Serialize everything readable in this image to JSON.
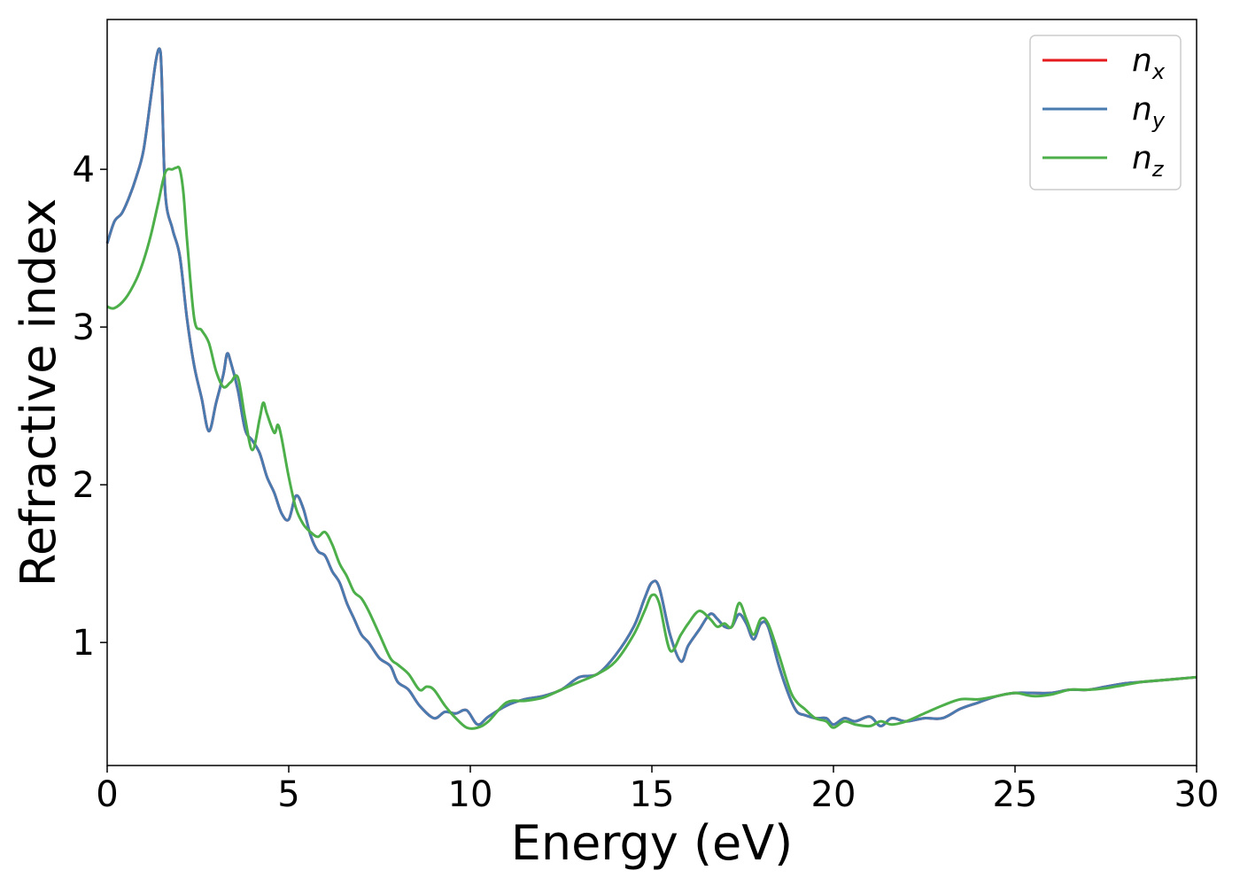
{
  "chart_data": {
    "type": "line",
    "title": "",
    "xlabel": "Energy (eV)",
    "ylabel": "Refractive index",
    "xlim": [
      0,
      30
    ],
    "ylim": [
      0.22,
      4.95
    ],
    "xticks": [
      0,
      5,
      10,
      15,
      20,
      25,
      30
    ],
    "yticks": [
      1,
      2,
      3,
      4
    ],
    "grid": false,
    "legend_position": "top-right",
    "series": [
      {
        "name": "n_x",
        "label_base": "n",
        "label_sub": "x",
        "color": "#e41a1c",
        "x": [
          0,
          0.2,
          0.4,
          0.6,
          0.8,
          1.0,
          1.2,
          1.35,
          1.45,
          1.5,
          1.6,
          1.8,
          2.0,
          2.2,
          2.4,
          2.6,
          2.8,
          3.0,
          3.2,
          3.3,
          3.4,
          3.6,
          3.8,
          4.0,
          4.2,
          4.4,
          4.6,
          4.8,
          5.0,
          5.2,
          5.4,
          5.6,
          5.8,
          6.0,
          6.2,
          6.4,
          6.6,
          6.8,
          7.0,
          7.2,
          7.5,
          7.8,
          8.0,
          8.3,
          8.6,
          9.0,
          9.3,
          9.6,
          9.9,
          10.2,
          10.5,
          11.0,
          11.5,
          12.0,
          12.5,
          13.0,
          13.5,
          14.0,
          14.5,
          14.8,
          15.0,
          15.2,
          15.5,
          15.8,
          16.0,
          16.3,
          16.6,
          16.8,
          17.0,
          17.2,
          17.4,
          17.6,
          17.8,
          18.0,
          18.2,
          18.5,
          18.8,
          19.0,
          19.2,
          19.5,
          19.8,
          20.0,
          20.3,
          20.6,
          21.0,
          21.3,
          21.6,
          22.0,
          22.5,
          23.0,
          23.5,
          24.0,
          24.5,
          25.0,
          25.5,
          26.0,
          26.5,
          27.0,
          27.5,
          28.0,
          28.5,
          29.0,
          29.5,
          30.0
        ],
        "y": [
          3.53,
          3.67,
          3.72,
          3.82,
          3.95,
          4.12,
          4.45,
          4.7,
          4.76,
          4.6,
          3.85,
          3.62,
          3.45,
          3.05,
          2.75,
          2.55,
          2.34,
          2.52,
          2.7,
          2.83,
          2.78,
          2.6,
          2.35,
          2.28,
          2.2,
          2.05,
          1.95,
          1.82,
          1.78,
          1.93,
          1.85,
          1.68,
          1.58,
          1.55,
          1.45,
          1.38,
          1.25,
          1.15,
          1.05,
          1.0,
          0.9,
          0.85,
          0.75,
          0.7,
          0.6,
          0.52,
          0.56,
          0.55,
          0.57,
          0.48,
          0.53,
          0.6,
          0.64,
          0.66,
          0.7,
          0.78,
          0.8,
          0.92,
          1.1,
          1.28,
          1.38,
          1.35,
          1.05,
          0.88,
          0.98,
          1.08,
          1.18,
          1.15,
          1.1,
          1.1,
          1.18,
          1.12,
          1.02,
          1.12,
          1.1,
          0.85,
          0.65,
          0.56,
          0.54,
          0.52,
          0.52,
          0.48,
          0.52,
          0.5,
          0.53,
          0.47,
          0.52,
          0.5,
          0.52,
          0.52,
          0.58,
          0.62,
          0.66,
          0.68,
          0.68,
          0.68,
          0.7,
          0.7,
          0.72,
          0.74,
          0.75,
          0.76,
          0.77,
          0.78
        ]
      },
      {
        "name": "n_y",
        "label_base": "n",
        "label_sub": "y",
        "color": "#4a7bb0",
        "x": [
          0,
          0.2,
          0.4,
          0.6,
          0.8,
          1.0,
          1.2,
          1.35,
          1.45,
          1.5,
          1.6,
          1.8,
          2.0,
          2.2,
          2.4,
          2.6,
          2.8,
          3.0,
          3.2,
          3.3,
          3.4,
          3.6,
          3.8,
          4.0,
          4.2,
          4.4,
          4.6,
          4.8,
          5.0,
          5.2,
          5.4,
          5.6,
          5.8,
          6.0,
          6.2,
          6.4,
          6.6,
          6.8,
          7.0,
          7.2,
          7.5,
          7.8,
          8.0,
          8.3,
          8.6,
          9.0,
          9.3,
          9.6,
          9.9,
          10.2,
          10.5,
          11.0,
          11.5,
          12.0,
          12.5,
          13.0,
          13.5,
          14.0,
          14.5,
          14.8,
          15.0,
          15.2,
          15.5,
          15.8,
          16.0,
          16.3,
          16.6,
          16.8,
          17.0,
          17.2,
          17.4,
          17.6,
          17.8,
          18.0,
          18.2,
          18.5,
          18.8,
          19.0,
          19.2,
          19.5,
          19.8,
          20.0,
          20.3,
          20.6,
          21.0,
          21.3,
          21.6,
          22.0,
          22.5,
          23.0,
          23.5,
          24.0,
          24.5,
          25.0,
          25.5,
          26.0,
          26.5,
          27.0,
          27.5,
          28.0,
          28.5,
          29.0,
          29.5,
          30.0
        ],
        "y": [
          3.53,
          3.67,
          3.72,
          3.82,
          3.95,
          4.12,
          4.45,
          4.7,
          4.76,
          4.6,
          3.85,
          3.62,
          3.45,
          3.05,
          2.75,
          2.55,
          2.34,
          2.52,
          2.7,
          2.83,
          2.78,
          2.6,
          2.35,
          2.28,
          2.2,
          2.05,
          1.95,
          1.82,
          1.78,
          1.93,
          1.85,
          1.68,
          1.58,
          1.55,
          1.45,
          1.38,
          1.25,
          1.15,
          1.05,
          1.0,
          0.9,
          0.85,
          0.75,
          0.7,
          0.6,
          0.52,
          0.56,
          0.55,
          0.57,
          0.48,
          0.53,
          0.6,
          0.64,
          0.66,
          0.7,
          0.78,
          0.8,
          0.92,
          1.1,
          1.28,
          1.38,
          1.35,
          1.05,
          0.88,
          0.98,
          1.08,
          1.18,
          1.15,
          1.1,
          1.1,
          1.18,
          1.12,
          1.02,
          1.12,
          1.1,
          0.85,
          0.65,
          0.56,
          0.54,
          0.52,
          0.52,
          0.48,
          0.52,
          0.5,
          0.53,
          0.47,
          0.52,
          0.5,
          0.52,
          0.52,
          0.58,
          0.62,
          0.66,
          0.68,
          0.68,
          0.68,
          0.7,
          0.7,
          0.72,
          0.74,
          0.75,
          0.76,
          0.77,
          0.78
        ]
      },
      {
        "name": "n_z",
        "label_base": "n",
        "label_sub": "z",
        "color": "#4daf4a",
        "x": [
          0,
          0.2,
          0.5,
          0.8,
          1.0,
          1.2,
          1.4,
          1.6,
          1.8,
          1.9,
          2.0,
          2.1,
          2.2,
          2.4,
          2.6,
          2.8,
          3.0,
          3.2,
          3.4,
          3.6,
          3.8,
          4.0,
          4.2,
          4.3,
          4.4,
          4.6,
          4.7,
          4.8,
          5.0,
          5.2,
          5.4,
          5.6,
          5.8,
          6.0,
          6.2,
          6.4,
          6.6,
          6.8,
          7.0,
          7.2,
          7.5,
          7.8,
          8.0,
          8.3,
          8.6,
          8.8,
          9.0,
          9.3,
          9.6,
          9.9,
          10.2,
          10.5,
          11.0,
          11.5,
          12.0,
          12.5,
          13.0,
          13.5,
          14.0,
          14.5,
          14.8,
          15.0,
          15.2,
          15.5,
          15.8,
          16.0,
          16.3,
          16.6,
          16.8,
          17.0,
          17.2,
          17.4,
          17.6,
          17.8,
          18.0,
          18.2,
          18.5,
          18.8,
          19.0,
          19.2,
          19.5,
          19.8,
          20.0,
          20.3,
          20.6,
          21.0,
          21.3,
          21.6,
          22.0,
          22.5,
          23.0,
          23.5,
          24.0,
          24.5,
          25.0,
          25.5,
          26.0,
          26.5,
          27.0,
          27.5,
          28.0,
          28.5,
          29.0,
          29.5,
          30.0
        ],
        "y": [
          3.13,
          3.12,
          3.18,
          3.3,
          3.42,
          3.58,
          3.78,
          3.98,
          4.0,
          4.01,
          4.0,
          3.85,
          3.55,
          3.05,
          2.98,
          2.9,
          2.72,
          2.62,
          2.65,
          2.68,
          2.42,
          2.22,
          2.42,
          2.52,
          2.45,
          2.33,
          2.38,
          2.3,
          2.05,
          1.85,
          1.75,
          1.7,
          1.67,
          1.7,
          1.62,
          1.5,
          1.42,
          1.32,
          1.28,
          1.2,
          1.05,
          0.9,
          0.86,
          0.8,
          0.7,
          0.72,
          0.7,
          0.6,
          0.52,
          0.46,
          0.46,
          0.5,
          0.62,
          0.63,
          0.65,
          0.7,
          0.75,
          0.8,
          0.88,
          1.05,
          1.2,
          1.3,
          1.25,
          0.95,
          1.05,
          1.12,
          1.2,
          1.15,
          1.1,
          1.12,
          1.1,
          1.25,
          1.15,
          1.05,
          1.15,
          1.12,
          0.92,
          0.7,
          0.62,
          0.58,
          0.52,
          0.5,
          0.46,
          0.5,
          0.48,
          0.47,
          0.5,
          0.48,
          0.5,
          0.55,
          0.6,
          0.64,
          0.64,
          0.66,
          0.68,
          0.66,
          0.67,
          0.7,
          0.7,
          0.71,
          0.73,
          0.75,
          0.76,
          0.77,
          0.78
        ]
      }
    ]
  }
}
